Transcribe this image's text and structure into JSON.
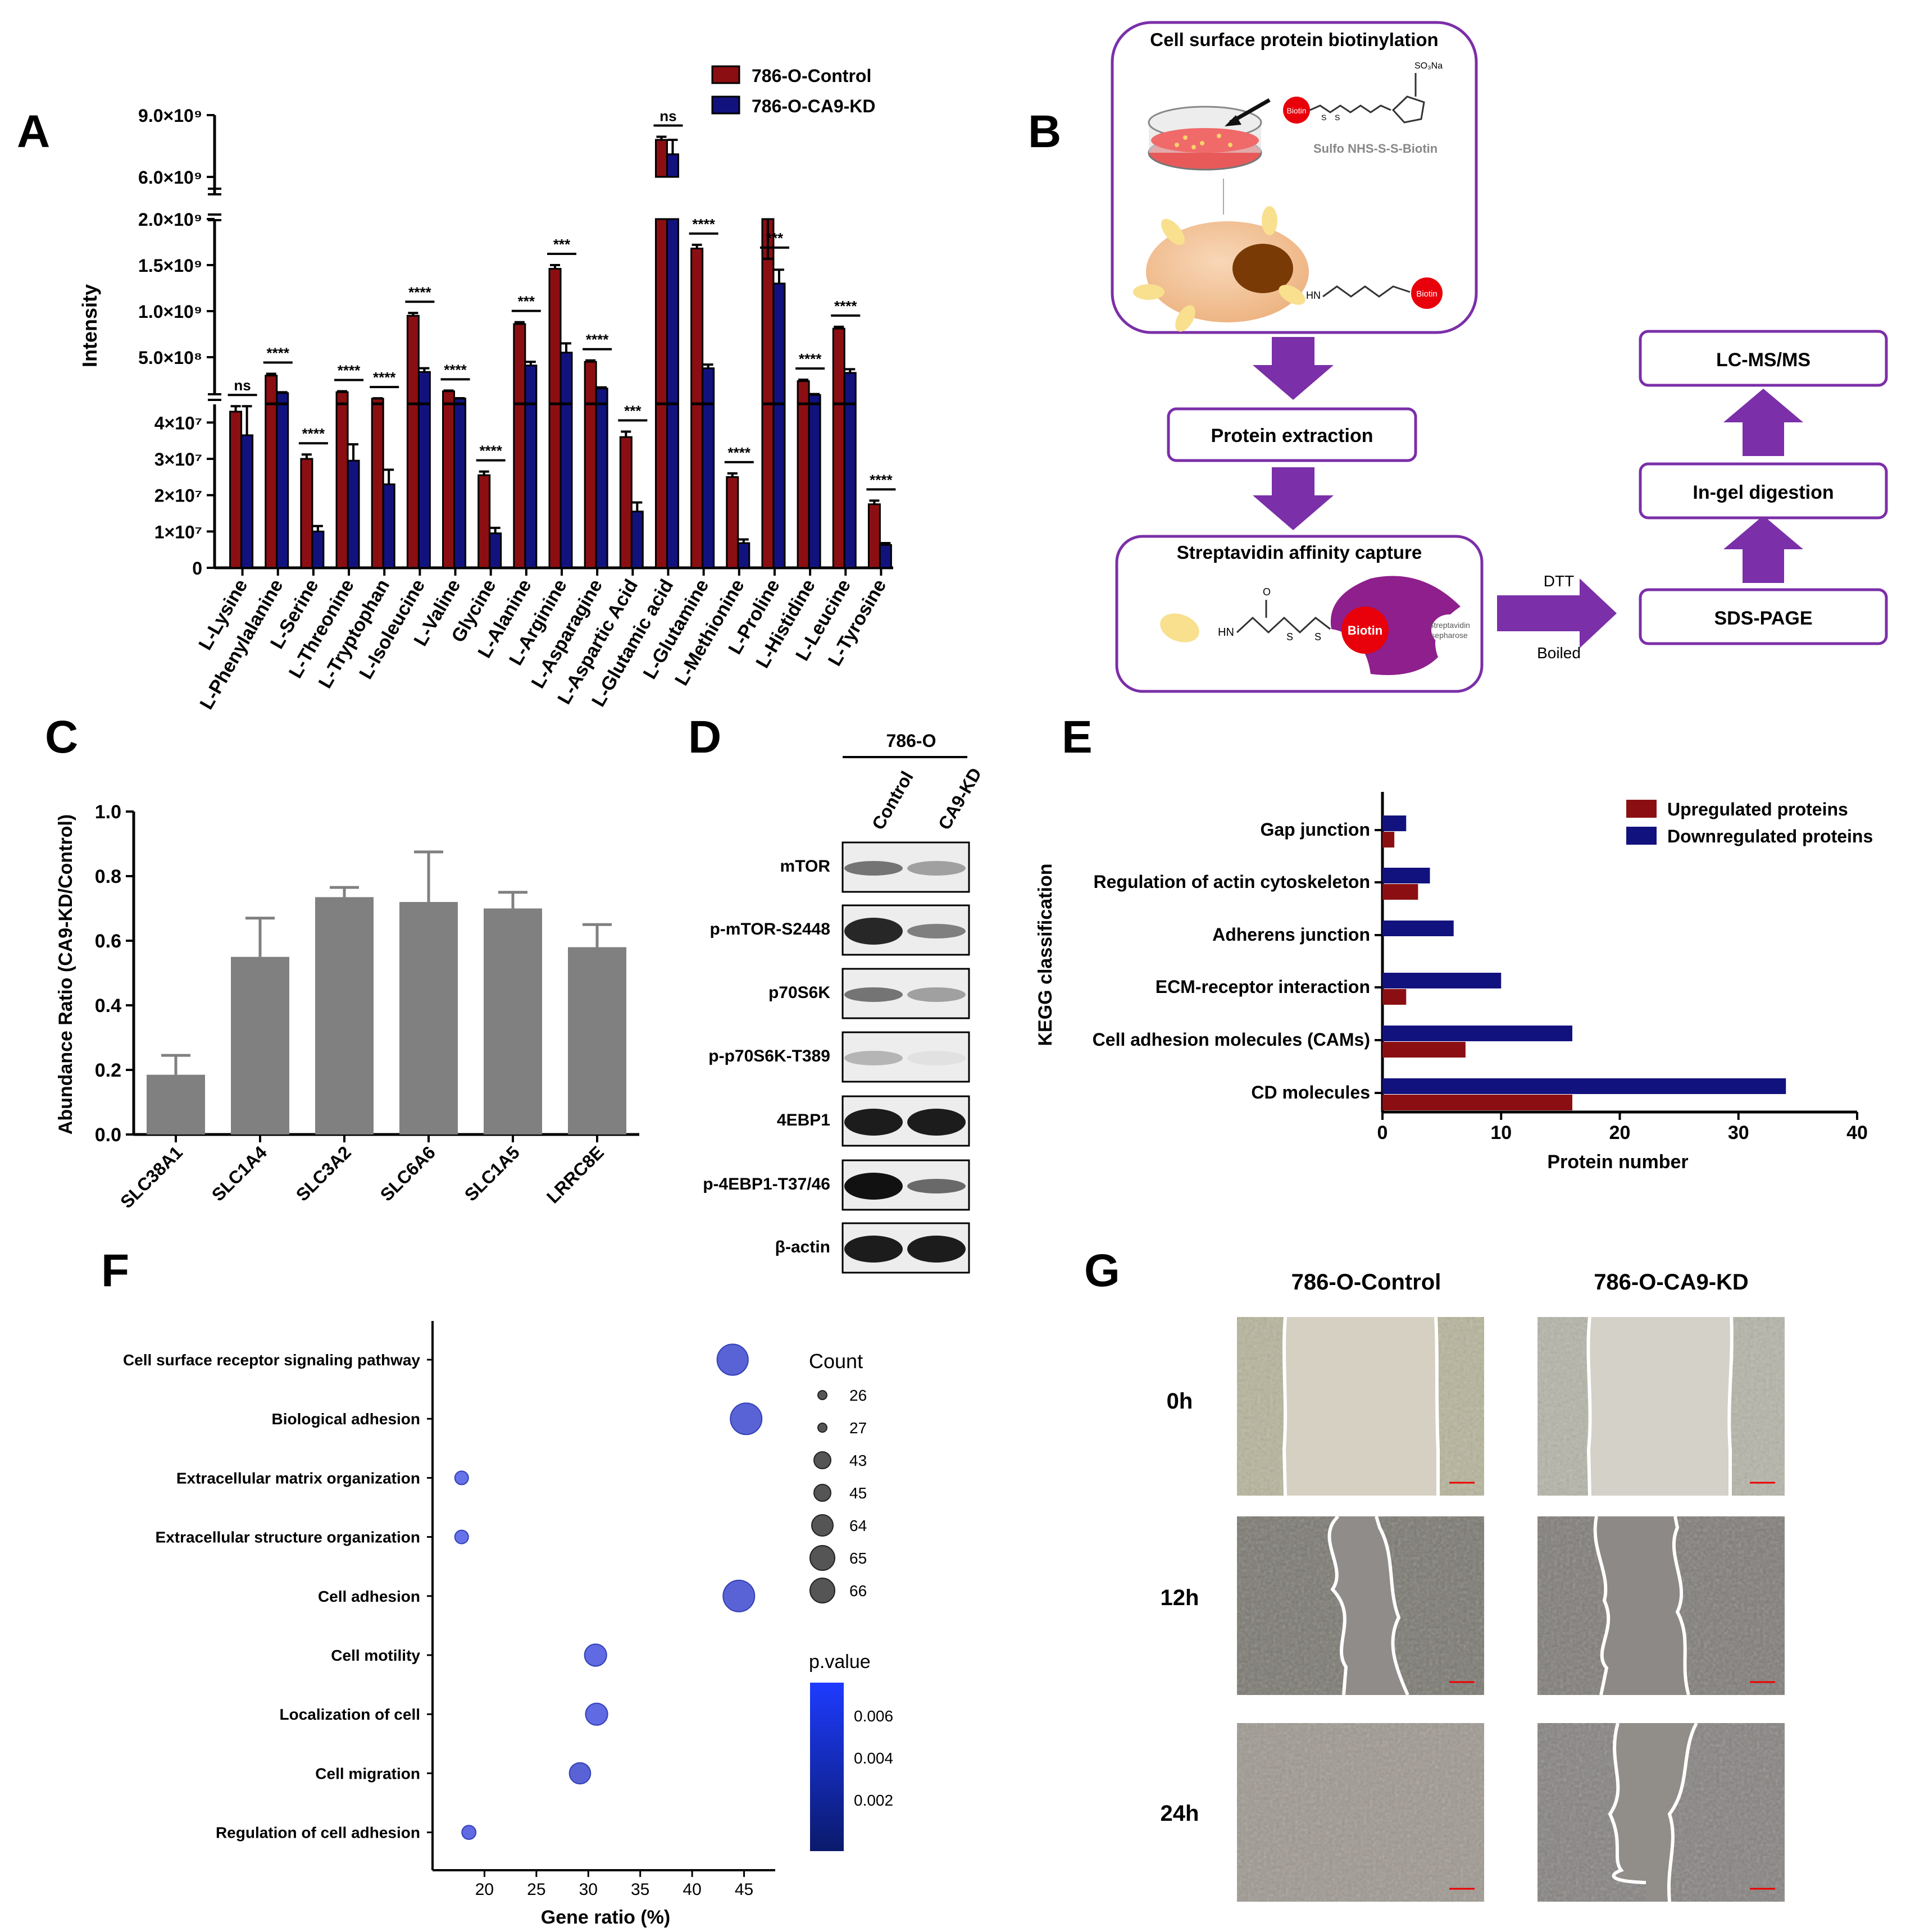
{
  "colors": {
    "control": "#8B0F12",
    "kd": "#12127E",
    "purple": "#7B2FA8",
    "grey_bar": "#808080",
    "dot": "#4B55D6",
    "pv_top": "#1E3BFF",
    "pv_bottom": "#0A1A6B",
    "biotin": "#E8000A"
  },
  "panel_labels": [
    "A",
    "B",
    "C",
    "D",
    "E",
    "F",
    "G"
  ],
  "panelA": {
    "ylabel": "Intensity",
    "legend": [
      "786-O-Control",
      "786-O-CA9-KD"
    ],
    "upper_ticks": [
      "9.0×10⁹",
      "6.0×10⁹"
    ],
    "middle_ticks": [
      "2.0×10⁹",
      "1.5×10⁹",
      "1.0×10⁹",
      "5.0×10⁸"
    ],
    "lower_ticks": [
      "4×10⁷",
      "3×10⁷",
      "2×10⁷",
      "1×10⁷",
      "0"
    ],
    "sig": [
      "ns",
      "****",
      "****",
      "****",
      "****",
      "****",
      "****",
      "****",
      "***",
      "***",
      "****",
      "***",
      "ns",
      "****",
      "****",
      "***",
      "****",
      "****",
      "****"
    ]
  },
  "panelB": {
    "box1_title": "Cell surface protein biotinylation",
    "reagent": "Sulfo NHS-S-S-Biotin",
    "so3na": "SO₃Na",
    "biotin": "Biotin",
    "hn": "HN",
    "s": "S",
    "o": "O",
    "step2": "Protein extraction",
    "step3": "Streptavidin affinity capture",
    "sepharose": [
      "Streptavidin",
      "sepharose"
    ],
    "dtt": "DTT",
    "boiled": "Boiled",
    "step4": "SDS-PAGE",
    "step5": "In-gel digestion",
    "step6": "LC-MS/MS"
  },
  "panelD": {
    "cell_line": "786-O",
    "lanes": [
      "Control",
      "CA9-KD"
    ],
    "bands": [
      "mTOR",
      "p-mTOR-S2448",
      "p70S6K",
      "p-p70S6K-T389",
      "4EBP1",
      "p-4EBP1-T37/46",
      "β-actin"
    ]
  },
  "panelG": {
    "cols": [
      "786-O-Control",
      "786-O-CA9-KD"
    ],
    "rows": [
      "0h",
      "12h",
      "24h"
    ]
  },
  "chart_data": [
    {
      "panel": "A",
      "type": "bar",
      "title": "",
      "xlabel": "",
      "ylabel": "Intensity",
      "y_axis": "broken: 0–4.5×10⁷, 0–2.0×10⁹, 6.0×10⁹–9.0×10⁹",
      "categories": [
        "L-Lysine",
        "L-Phenylalanine",
        "L-Serine",
        "L-Threonine",
        "L-Tryptophan",
        "L-Isoleucine",
        "L-Valine",
        "Glycine",
        "L-Alanine",
        "L-Arginine",
        "L-Asparagine",
        "L-Aspartic Acid",
        "L-Glutamic acid",
        "L-Glutamine",
        "L-Methionine",
        "L-Proline",
        "L-Histidine",
        "L-Leucine",
        "L-Tyrosine"
      ],
      "series": [
        {
          "name": "786-O-Control",
          "values": [
            43000000,
            300000000,
            30000000,
            120000000,
            50000000,
            950000000,
            130000000,
            25500000,
            860000000,
            1460000000,
            450000000,
            36000000,
            7800000000,
            1680000000,
            25000000,
            2000000000,
            240000000,
            810000000,
            17500000
          ],
          "errors": [
            1500000,
            20000000,
            1200000,
            10000000,
            4000000,
            30000000,
            8000000,
            1000000,
            20000000,
            40000000,
            15000000,
            1500000,
            150000000,
            40000000,
            1000000,
            20000000,
            15000000,
            20000000,
            1000000
          ]
        },
        {
          "name": "786-O-CA9-KD",
          "values": [
            36500000,
            110000000,
            10000000,
            29500000,
            23000000,
            340000000,
            50000000,
            9500000,
            410000000,
            550000000,
            160000000,
            15500000,
            7100000000,
            380000000,
            6800000,
            1300000000,
            90000000,
            330000000,
            6300000
          ],
          "errors": [
            8000000,
            10000000,
            1500000,
            4500000,
            4000000,
            40000000,
            5000000,
            1500000,
            40000000,
            100000000,
            12000000,
            2500000,
            700000000,
            40000000,
            1000000,
            150000000,
            10000000,
            40000000,
            500000
          ]
        }
      ],
      "significance": [
        "ns",
        "****",
        "****",
        "****",
        "****",
        "****",
        "****",
        "****",
        "***",
        "***",
        "****",
        "***",
        "ns",
        "****",
        "****",
        "***",
        "****",
        "****",
        "****"
      ]
    },
    {
      "panel": "C",
      "type": "bar",
      "title": "",
      "xlabel": "",
      "ylabel": "Abundance Ratio (CA9-KD/Control)",
      "categories": [
        "SLC38A1",
        "SLC1A4",
        "SLC3A2",
        "SLC6A6",
        "SLC1A5",
        "LRRC8E"
      ],
      "values": [
        0.185,
        0.55,
        0.735,
        0.72,
        0.7,
        0.58
      ],
      "errors": [
        0.06,
        0.12,
        0.03,
        0.155,
        0.05,
        0.07
      ],
      "ylim": [
        0,
        1.0
      ],
      "yticks": [
        "0.0",
        "0.2",
        "0.4",
        "0.6",
        "0.8",
        "1.0"
      ]
    },
    {
      "panel": "E",
      "type": "bar",
      "orientation": "horizontal",
      "title": "",
      "xlabel": "Protein number",
      "ylabel": "KEGG classification",
      "categories": [
        "Gap junction",
        "Regulation of actin cytoskeleton",
        "Adherens junction",
        "ECM-receptor interaction",
        "Cell adhesion molecules (CAMs)",
        "CD molecules"
      ],
      "series": [
        {
          "name": "Upregulated proteins",
          "values": [
            1,
            3,
            0,
            2,
            7,
            16
          ]
        },
        {
          "name": "Downregulated proteins",
          "values": [
            2,
            4,
            6,
            10,
            16,
            34
          ]
        }
      ],
      "xlim": [
        0,
        40
      ],
      "xticks": [
        "0",
        "10",
        "20",
        "30",
        "40"
      ],
      "legend": "top-right"
    },
    {
      "panel": "F",
      "type": "scatter",
      "title": "",
      "xlabel": "Gene ratio (%)",
      "ylabel": "",
      "categories": [
        "Cell surface receptor signaling pathway",
        "Biological adhesion",
        "Extracellular matrix organization",
        "Extracellular structure organization",
        "Cell adhesion",
        "Cell motility",
        "Localization of cell",
        "Cell migration",
        "Regulation of cell adhesion"
      ],
      "x": [
        43.9,
        45.2,
        17.8,
        17.8,
        44.5,
        30.7,
        30.8,
        29.2,
        18.5
      ],
      "count": [
        65,
        66,
        26,
        26,
        66,
        45,
        45,
        43,
        27
      ],
      "pvalue": [
        0.0003,
        0.0002,
        0.0025,
        0.0025,
        0.0003,
        0.001,
        0.001,
        0.0008,
        0.0015
      ],
      "xlim": [
        15,
        48
      ],
      "xticks": [
        "20",
        "25",
        "30",
        "35",
        "40",
        "45"
      ],
      "count_title": "Count",
      "count_legend": [
        "26",
        "27",
        "43",
        "45",
        "64",
        "65",
        "66"
      ],
      "pvalue_title": "p.value",
      "pvalue_ticks": [
        "0.006",
        "0.004",
        "0.002"
      ]
    }
  ]
}
